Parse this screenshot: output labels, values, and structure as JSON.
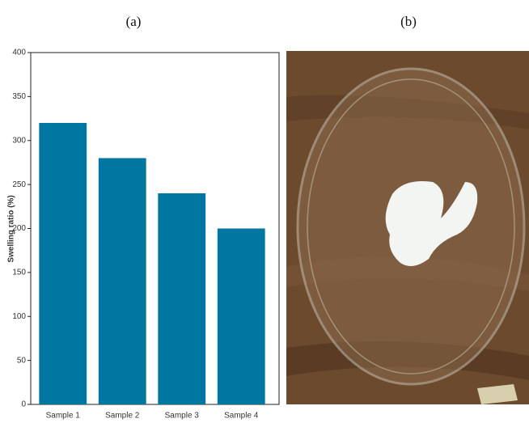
{
  "panel_labels": [
    "(a)",
    "(b)"
  ],
  "chart_data": {
    "type": "bar",
    "y_label": "Swelling ratio (%)",
    "categories": [
      "Sample 1",
      "Sample 2",
      "Sample 3",
      "Sample 4"
    ],
    "values": [
      320,
      280,
      240,
      200
    ],
    "color": "#0077a0",
    "ylim": [
      0,
      400
    ],
    "yticks": [
      0,
      50,
      100,
      150,
      200,
      250,
      300,
      350,
      400
    ],
    "grid": false
  }
}
